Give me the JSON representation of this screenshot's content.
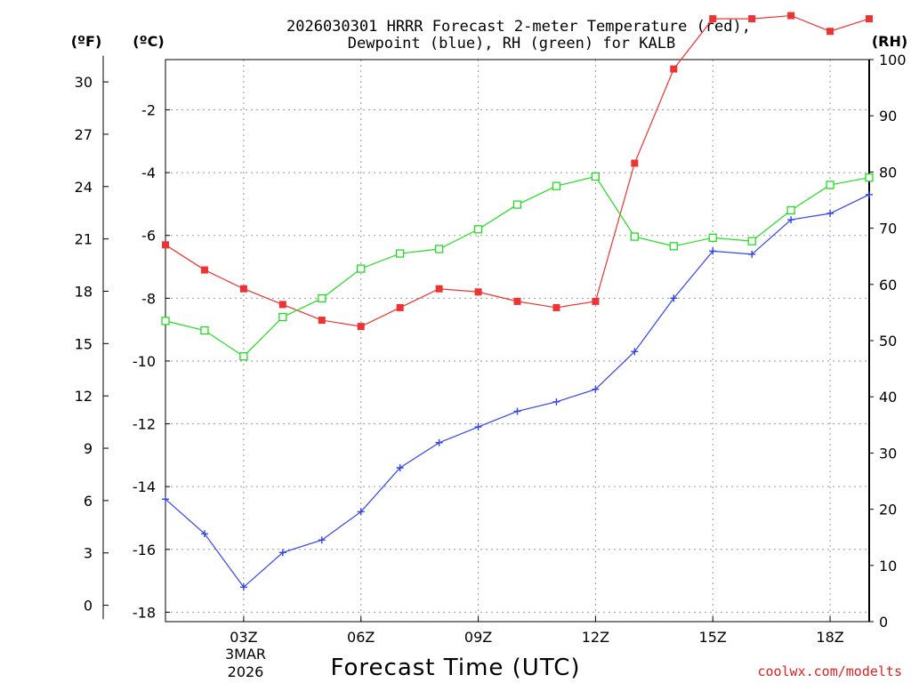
{
  "chart_data": {
    "type": "line",
    "title_line1": "2026030301 HRRR Forecast 2-meter Temperature (red),",
    "title_line2": "Dewpoint (blue), RH (green) for KALB",
    "xlabel": "Forecast Time (UTC)",
    "left_outer_unit": "(ºF)",
    "left_inner_unit": "(ºC)",
    "right_unit": "(RH)",
    "x_hours": [
      1,
      2,
      3,
      4,
      5,
      6,
      7,
      8,
      9,
      10,
      11,
      12,
      13,
      14,
      15,
      16,
      17,
      18,
      19
    ],
    "x_tick_hours": [
      3,
      6,
      9,
      12,
      15,
      18
    ],
    "x_tick_labels": [
      "03Z",
      "06Z",
      "09Z",
      "12Z",
      "15Z",
      "18Z"
    ],
    "date_label_line1": "3MAR",
    "date_label_line2": "2026",
    "xlim": [
      1,
      19
    ],
    "celsius_ylim": [
      -18.3,
      -0.4
    ],
    "celsius_ticks": [
      -2,
      -4,
      -6,
      -8,
      -10,
      -12,
      -14,
      -16,
      -18
    ],
    "fahrenheit_ticks": [
      30,
      27,
      24,
      21,
      18,
      15,
      12,
      9,
      6,
      3,
      0
    ],
    "rh_ylim": [
      0,
      100
    ],
    "rh_ticks": [
      100,
      90,
      80,
      70,
      60,
      50,
      40,
      30,
      20,
      10,
      0
    ],
    "series": [
      {
        "name": "Temperature",
        "units": "degC",
        "color": "#ee3333",
        "marker": "filled-square",
        "values": [
          -6.3,
          -7.1,
          -7.7,
          -8.2,
          -8.7,
          -8.9,
          -8.3,
          -7.7,
          -7.8,
          -8.1,
          -8.3,
          -8.1,
          -3.7,
          -0.7,
          0.9,
          0.9,
          1.0,
          0.5,
          0.9
        ]
      },
      {
        "name": "Dewpoint",
        "units": "degC",
        "color": "#3344ee",
        "marker": "plus",
        "values": [
          -14.4,
          -15.5,
          -17.2,
          -16.1,
          -15.7,
          -14.8,
          -13.4,
          -12.6,
          -12.1,
          -11.6,
          -11.3,
          -10.9,
          -9.7,
          -8.0,
          -6.5,
          -6.6,
          -5.5,
          -5.3,
          -4.7
        ]
      },
      {
        "name": "RH",
        "units": "percent",
        "color": "#22dd22",
        "marker": "open-square",
        "values": [
          53.5,
          51.8,
          47.2,
          54.2,
          57.5,
          62.8,
          65.5,
          66.3,
          69.8,
          74.2,
          77.5,
          79.2,
          68.5,
          66.8,
          68.3,
          67.7,
          73.2,
          77.7,
          79.0
        ]
      }
    ]
  },
  "footer": {
    "credit": "coolwx.com/modelts",
    "credit_color": "#dd2222"
  }
}
